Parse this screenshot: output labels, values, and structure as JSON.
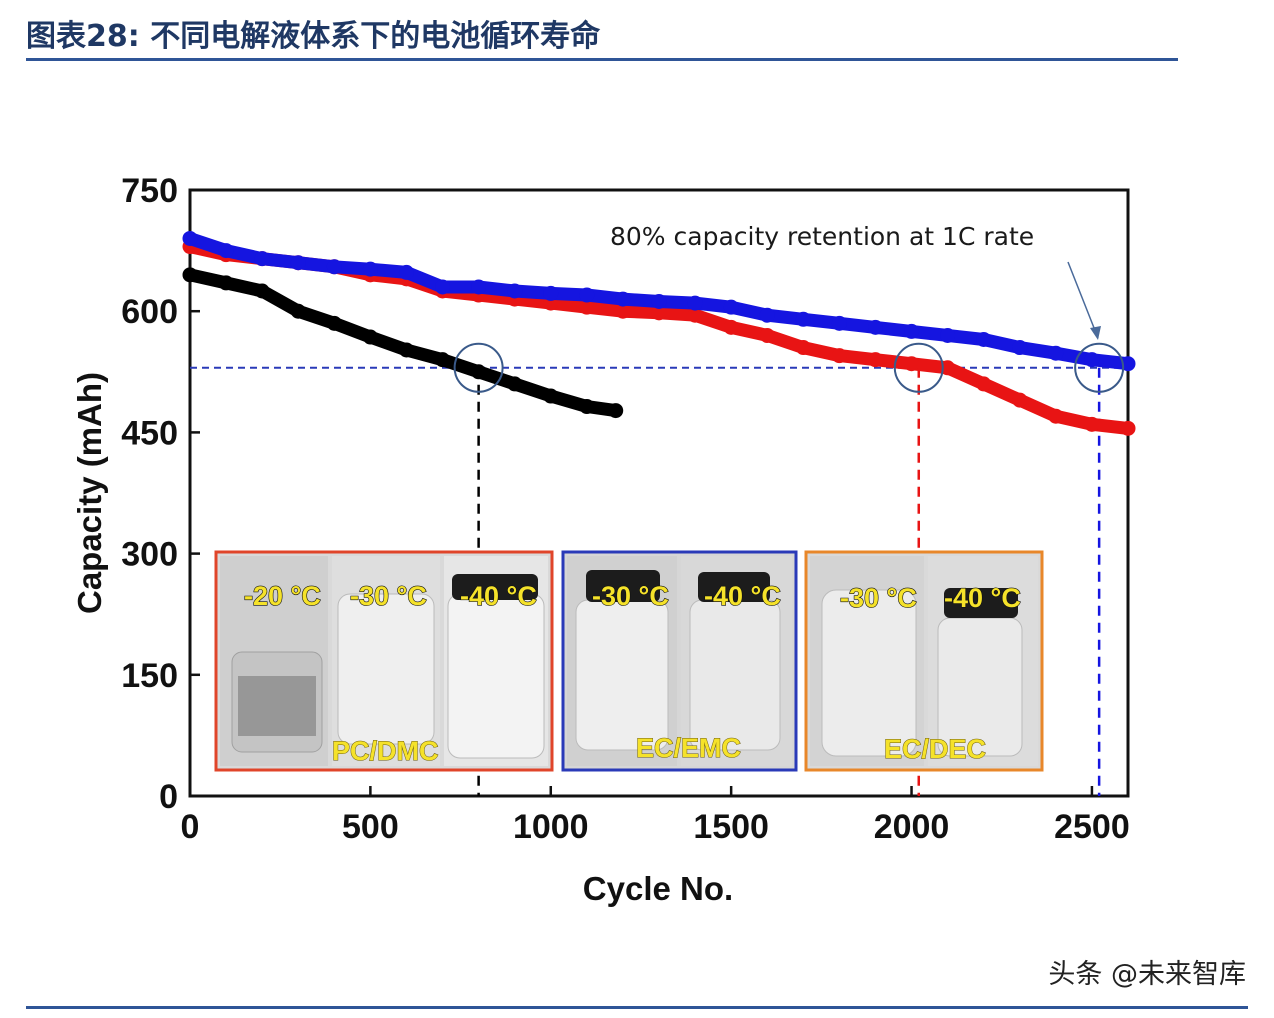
{
  "figure_title": "图表28:  不同电解液体系下的电池循环寿命",
  "watermark": "头条 @未来智库",
  "colors": {
    "title": "#1f3864",
    "rule": "#2f5597",
    "pc_dmc": "#000000",
    "ec_emc": "#1515e0",
    "ec_dec": "#e81414",
    "inset_pc_dmc": "#e0452a",
    "inset_ec_emc": "#2a3ab8",
    "inset_ec_dec": "#e8872a",
    "marker_circle": "#3a5a8a"
  },
  "chart_data": {
    "type": "line",
    "title": "",
    "xlabel": "Cycle No.",
    "ylabel": "Capacity (mAh)",
    "xlim": [
      0,
      2600
    ],
    "ylim": [
      0,
      750
    ],
    "xticks": [
      0,
      500,
      1000,
      1500,
      2000,
      2500
    ],
    "yticks": [
      0,
      150,
      300,
      450,
      600,
      750
    ],
    "series": [
      {
        "name": "PC/DMC",
        "color": "#000000",
        "x": [
          0,
          100,
          200,
          300,
          400,
          500,
          600,
          700,
          800,
          900,
          1000,
          1100,
          1180
        ],
        "y": [
          645,
          635,
          625,
          600,
          585,
          568,
          552,
          540,
          525,
          510,
          495,
          482,
          477
        ]
      },
      {
        "name": "EC/DEC",
        "color": "#e81414",
        "x": [
          0,
          100,
          200,
          300,
          400,
          500,
          600,
          700,
          800,
          900,
          1000,
          1100,
          1200,
          1300,
          1400,
          1500,
          1600,
          1700,
          1800,
          1900,
          2000,
          2100,
          2200,
          2300,
          2400,
          2500,
          2600
        ],
        "y": [
          680,
          670,
          665,
          660,
          655,
          645,
          640,
          625,
          620,
          615,
          610,
          605,
          600,
          598,
          595,
          580,
          570,
          555,
          545,
          540,
          535,
          530,
          510,
          490,
          470,
          460,
          455
        ]
      },
      {
        "name": "EC/EMC",
        "color": "#1515e0",
        "x": [
          0,
          100,
          200,
          300,
          400,
          500,
          600,
          700,
          800,
          900,
          1000,
          1100,
          1200,
          1300,
          1400,
          1500,
          1600,
          1700,
          1800,
          1900,
          2000,
          2100,
          2200,
          2300,
          2400,
          2500,
          2600
        ],
        "y": [
          690,
          675,
          665,
          660,
          655,
          652,
          648,
          630,
          630,
          625,
          622,
          620,
          615,
          612,
          610,
          605,
          595,
          590,
          585,
          580,
          575,
          570,
          565,
          555,
          548,
          540,
          535
        ]
      }
    ],
    "reference_line": {
      "y": 530,
      "label": "80% capacity retention"
    },
    "drop_lines": [
      {
        "x": 800,
        "series": "PC/DMC"
      },
      {
        "x": 2020,
        "series": "EC/DEC"
      },
      {
        "x": 2520,
        "series": "EC/EMC"
      }
    ],
    "annotation": "80% capacity retention at 1C rate",
    "insets": [
      {
        "solvent": "PC/DMC",
        "temps": [
          "-20 °C",
          "-30 °C",
          "-40 °C"
        ]
      },
      {
        "solvent": "EC/EMC",
        "temps": [
          "-30 °C",
          "-40 °C"
        ]
      },
      {
        "solvent": "EC/DEC",
        "temps": [
          "-30 °C",
          "-40 °C"
        ]
      }
    ]
  }
}
